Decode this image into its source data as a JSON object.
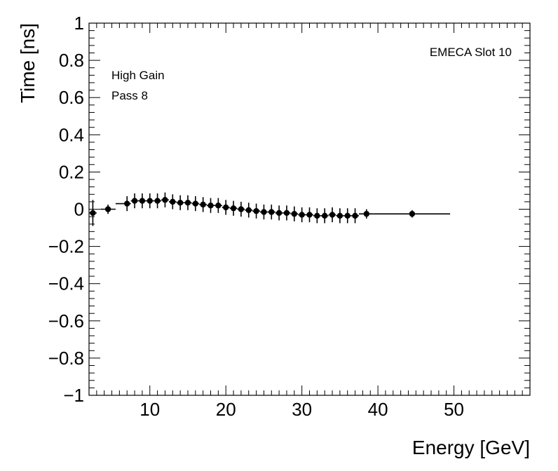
{
  "chart_data": {
    "type": "scatter",
    "title": "",
    "xlabel": "Energy [GeV]",
    "ylabel": "Time [ns]",
    "xlim": [
      2,
      60
    ],
    "ylim": [
      -1,
      1
    ],
    "x_tick_labels": [
      "10",
      "20",
      "30",
      "40",
      "50"
    ],
    "x_tick_values": [
      10,
      20,
      30,
      40,
      50
    ],
    "y_tick_labels": [
      "−1",
      "−0.8",
      "−0.6",
      "−0.4",
      "−0.2",
      "0",
      "0.2",
      "0.4",
      "0.6",
      "0.8",
      "1"
    ],
    "y_tick_values": [
      -1,
      -0.8,
      -0.6,
      -0.4,
      -0.2,
      0,
      0.2,
      0.4,
      0.6,
      0.8,
      1
    ],
    "annotations": {
      "slot": "EMECA Slot 10",
      "gain": "High Gain",
      "pass": "Pass 8"
    },
    "series": [
      {
        "name": "points",
        "x": [
          2.5,
          4.5,
          7.0,
          8.0,
          9.0,
          10.0,
          11.0,
          12.0,
          13.0,
          14.0,
          15.0,
          16.0,
          17.0,
          18.0,
          19.0,
          20.0,
          21.0,
          22.0,
          23.0,
          24.0,
          25.0,
          26.0,
          27.0,
          28.0,
          29.0,
          30.0,
          31.0,
          32.0,
          33.0,
          34.0,
          35.0,
          36.0,
          37.0,
          38.5,
          44.5
        ],
        "y": [
          -0.02,
          0.0,
          0.03,
          0.045,
          0.045,
          0.045,
          0.045,
          0.05,
          0.04,
          0.035,
          0.035,
          0.03,
          0.025,
          0.02,
          0.02,
          0.01,
          0.005,
          0.0,
          -0.005,
          -0.01,
          -0.015,
          -0.015,
          -0.02,
          -0.02,
          -0.025,
          -0.03,
          -0.03,
          -0.035,
          -0.035,
          -0.03,
          -0.035,
          -0.035,
          -0.035,
          -0.025,
          -0.025
        ],
        "xerr_lo": [
          0.5,
          1.0,
          1.5,
          0.5,
          0.5,
          0.5,
          0.5,
          0.5,
          0.5,
          0.5,
          0.5,
          0.5,
          0.5,
          0.5,
          0.5,
          0.5,
          0.5,
          0.5,
          0.5,
          0.5,
          0.5,
          0.5,
          0.5,
          0.5,
          0.5,
          0.5,
          0.5,
          0.5,
          0.5,
          0.5,
          0.5,
          0.5,
          0.5,
          1.0,
          5.0
        ],
        "xerr_hi": [
          0.5,
          1.0,
          0.5,
          0.5,
          0.5,
          0.5,
          0.5,
          0.5,
          0.5,
          0.5,
          0.5,
          0.5,
          0.5,
          0.5,
          0.5,
          0.5,
          0.5,
          0.5,
          0.5,
          0.5,
          0.5,
          0.5,
          0.5,
          0.5,
          0.5,
          0.5,
          0.5,
          0.5,
          0.5,
          0.5,
          0.5,
          0.5,
          0.5,
          1.0,
          5.0
        ],
        "yerr": [
          0.07,
          0.025,
          0.04,
          0.04,
          0.04,
          0.04,
          0.04,
          0.04,
          0.04,
          0.04,
          0.04,
          0.04,
          0.04,
          0.04,
          0.04,
          0.04,
          0.04,
          0.04,
          0.04,
          0.04,
          0.04,
          0.04,
          0.04,
          0.04,
          0.04,
          0.04,
          0.04,
          0.04,
          0.04,
          0.04,
          0.04,
          0.04,
          0.04,
          0.025,
          0.02
        ]
      }
    ]
  }
}
